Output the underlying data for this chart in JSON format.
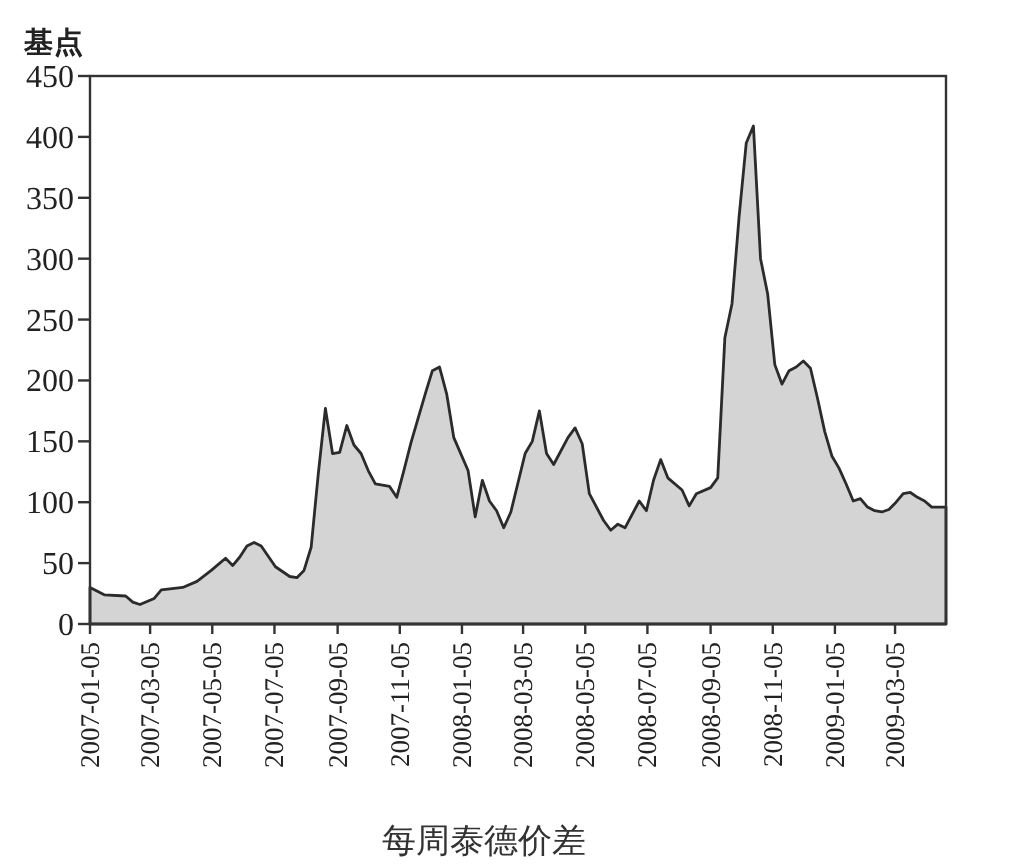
{
  "chart_data": {
    "type": "area",
    "ylabel": "基点",
    "xlabel": "每周泰德价差",
    "color": "#d4d4d4",
    "x": [
      "2007-01-05",
      "2007-01-19",
      "2007-02-09",
      "2007-02-16",
      "2007-02-23",
      "2007-03-09",
      "2007-03-16",
      "2007-04-06",
      "2007-04-20",
      "2007-05-04",
      "2007-05-18",
      "2007-05-25",
      "2007-06-01",
      "2007-06-08",
      "2007-06-15",
      "2007-06-22",
      "2007-07-06",
      "2007-07-20",
      "2007-07-27",
      "2007-08-03",
      "2007-08-10",
      "2007-08-17",
      "2007-08-24",
      "2007-08-31",
      "2007-09-07",
      "2007-09-14",
      "2007-09-21",
      "2007-09-28",
      "2007-10-05",
      "2007-10-12",
      "2007-10-26",
      "2007-11-02",
      "2007-11-09",
      "2007-11-16",
      "2007-11-30",
      "2007-12-07",
      "2007-12-14",
      "2007-12-21",
      "2007-12-28",
      "2008-01-11",
      "2008-01-18",
      "2008-01-25",
      "2008-02-01",
      "2008-02-08",
      "2008-02-15",
      "2008-02-22",
      "2008-03-07",
      "2008-03-14",
      "2008-03-21",
      "2008-03-28",
      "2008-04-04",
      "2008-04-18",
      "2008-04-25",
      "2008-05-02",
      "2008-05-09",
      "2008-05-23",
      "2008-05-30",
      "2008-06-06",
      "2008-06-13",
      "2008-06-27",
      "2008-07-04",
      "2008-07-11",
      "2008-07-18",
      "2008-07-25",
      "2008-08-08",
      "2008-08-15",
      "2008-08-22",
      "2008-09-05",
      "2008-09-12",
      "2008-09-19",
      "2008-09-26",
      "2008-10-03",
      "2008-10-10",
      "2008-10-17",
      "2008-10-24",
      "2008-10-31",
      "2008-11-07",
      "2008-11-14",
      "2008-11-21",
      "2008-11-28",
      "2008-12-05",
      "2008-12-12",
      "2008-12-19",
      "2008-12-26",
      "2009-01-02",
      "2009-01-09",
      "2009-01-16",
      "2009-01-23",
      "2009-01-30",
      "2009-02-06",
      "2009-02-13",
      "2009-02-20",
      "2009-02-27",
      "2009-03-06",
      "2009-03-13",
      "2009-03-20",
      "2009-03-27",
      "2009-04-03",
      "2009-04-10",
      "2009-04-24"
    ],
    "values": [
      30,
      24,
      23,
      18,
      16,
      21,
      28,
      30,
      35,
      44,
      54,
      48,
      55,
      64,
      67,
      64,
      47,
      39,
      38,
      44,
      63,
      123,
      177,
      140,
      141,
      163,
      147,
      140,
      126,
      115,
      113,
      104,
      126,
      149,
      189,
      208,
      211,
      189,
      153,
      126,
      88,
      118,
      101,
      93,
      79,
      92,
      140,
      150,
      175,
      140,
      131,
      153,
      161,
      148,
      107,
      85,
      77,
      82,
      79,
      101,
      93,
      118,
      135,
      120,
      110,
      97,
      107,
      112,
      120,
      235,
      263,
      335,
      395,
      409,
      300,
      271,
      213,
      197,
      208,
      211,
      216,
      210,
      185,
      158,
      138,
      128,
      115,
      101,
      103,
      96,
      93,
      92,
      94,
      100,
      107,
      108,
      104,
      101,
      96,
      96
    ],
    "xlim": [
      "2007-01-05",
      "2009-04-24"
    ],
    "xticks": [
      "2007-01-05",
      "2007-03-05",
      "2007-05-05",
      "2007-07-05",
      "2007-09-05",
      "2007-11-05",
      "2008-01-05",
      "2008-03-05",
      "2008-05-05",
      "2008-07-05",
      "2008-09-05",
      "2008-11-05",
      "2009-01-05",
      "2009-03-05"
    ],
    "ylim": [
      0,
      450
    ],
    "yticks": [
      0,
      50,
      100,
      150,
      200,
      250,
      300,
      350,
      400,
      450
    ]
  }
}
